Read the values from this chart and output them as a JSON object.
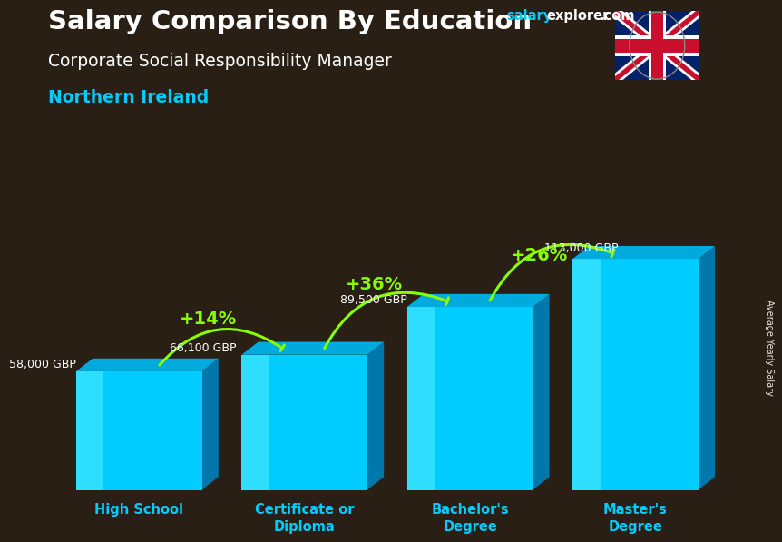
{
  "title_line1": "Salary Comparison By Education",
  "title_line2": "Corporate Social Responsibility Manager",
  "subtitle": "Northern Ireland",
  "ylabel": "Average Yearly Salary",
  "categories": [
    "High School",
    "Certificate or\nDiploma",
    "Bachelor's\nDegree",
    "Master's\nDegree"
  ],
  "values": [
    58000,
    66100,
    89500,
    113000
  ],
  "value_labels": [
    "58,000 GBP",
    "66,100 GBP",
    "89,500 GBP",
    "113,000 GBP"
  ],
  "pct_labels": [
    "+14%",
    "+36%",
    "+26%"
  ],
  "face_color": "#00CCFF",
  "side_color": "#0077AA",
  "top_color": "#00AADD",
  "highlight_color": "#55EEFF",
  "title_color": "#FFFFFF",
  "subtitle2_color": "#FFFFFF",
  "location_color": "#00CCFF",
  "value_label_color": "#FFFFFF",
  "pct_color": "#88FF00",
  "arrow_color": "#88FF00",
  "x_label_color": "#00CCFF",
  "bg_color": "#2a1f14",
  "ylim_max": 140000,
  "watermark_salary_color": "#00CCFF",
  "watermark_rest_color": "#FFFFFF"
}
